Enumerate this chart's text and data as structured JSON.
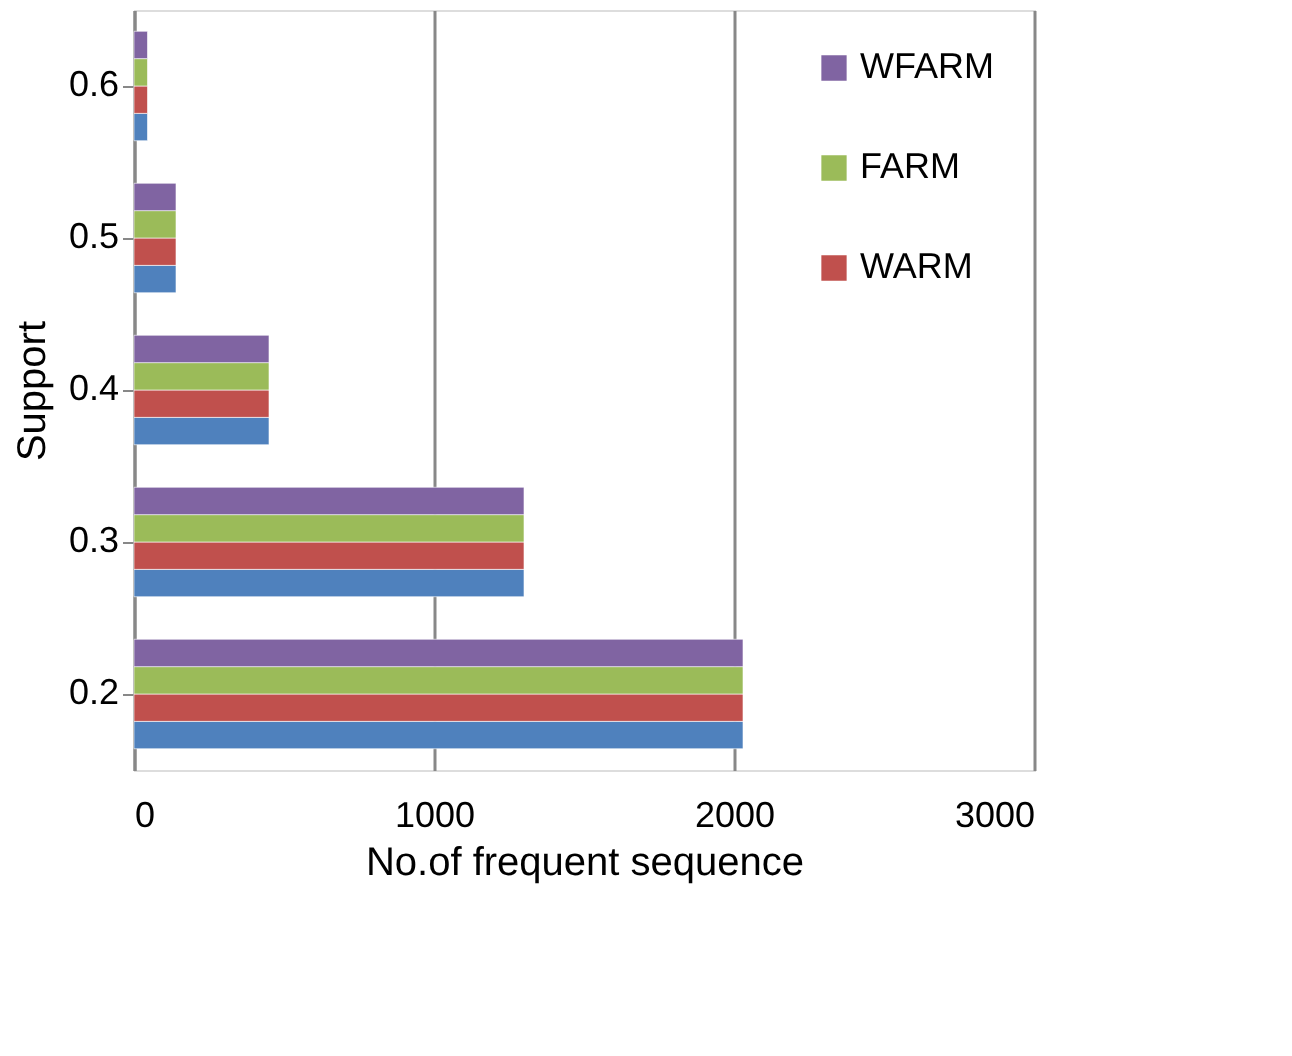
{
  "chart_data": {
    "type": "bar",
    "orientation": "horizontal",
    "categories": [
      "0.6",
      "0.5",
      "0.4",
      "0.3",
      "0.2"
    ],
    "series": [
      {
        "color": "#4f81bd",
        "values": [
          45,
          140,
          450,
          1300,
          2030
        ]
      },
      {
        "name": "WARM",
        "color": "#c0504d",
        "values": [
          45,
          140,
          450,
          1300,
          2030
        ]
      },
      {
        "name": "FARM",
        "color": "#9bbb59",
        "values": [
          45,
          140,
          450,
          1300,
          2030
        ]
      },
      {
        "name": "WFARM",
        "color": "#8064a2",
        "values": [
          45,
          140,
          450,
          1300,
          2030
        ]
      }
    ],
    "xlim": [
      0,
      3000
    ],
    "xticks": [
      0,
      1000,
      2000,
      3000
    ],
    "xlabel": "No.of frequent sequence",
    "ylabel": "Support",
    "grid": "x",
    "legend": "top right"
  }
}
